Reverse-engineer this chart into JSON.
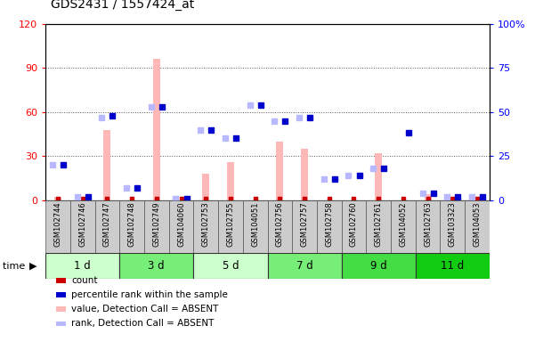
{
  "title": "GDS2431 / 1557424_at",
  "samples": [
    "GSM102744",
    "GSM102746",
    "GSM102747",
    "GSM102748",
    "GSM102749",
    "GSM104060",
    "GSM102753",
    "GSM102755",
    "GSM104051",
    "GSM102756",
    "GSM102757",
    "GSM102758",
    "GSM102760",
    "GSM102761",
    "GSM104052",
    "GSM102763",
    "GSM103323",
    "GSM104053"
  ],
  "groups": [
    {
      "label": "1 d",
      "indices": [
        0,
        1,
        2
      ],
      "color": "#ddffdd"
    },
    {
      "label": "3 d",
      "indices": [
        3,
        4,
        5
      ],
      "color": "#88ee88"
    },
    {
      "label": "5 d",
      "indices": [
        6,
        7,
        8
      ],
      "color": "#ddffdd"
    },
    {
      "label": "7 d",
      "indices": [
        9,
        10,
        11
      ],
      "color": "#88ee88"
    },
    {
      "label": "9 d",
      "indices": [
        12,
        13,
        14
      ],
      "color": "#44dd44"
    },
    {
      "label": "11 d",
      "indices": [
        15,
        16,
        17
      ],
      "color": "#22cc22"
    }
  ],
  "count_values": [
    1,
    1,
    1,
    1,
    1,
    1,
    1,
    1,
    1,
    1,
    1,
    1,
    1,
    1,
    1,
    1,
    1,
    1
  ],
  "percentile_rank_values": [
    20,
    2,
    48,
    7,
    53,
    1,
    40,
    35,
    54,
    45,
    47,
    12,
    14,
    18,
    38,
    4,
    2,
    2
  ],
  "value_absent": [
    2,
    0,
    48,
    0,
    96,
    0,
    18,
    26,
    0,
    40,
    35,
    0,
    0,
    32,
    0,
    4,
    1,
    0
  ],
  "rank_absent": [
    20,
    2,
    47,
    7,
    53,
    1,
    40,
    35,
    54,
    45,
    47,
    12,
    14,
    18,
    0,
    4,
    2,
    2
  ],
  "ylim_left": [
    0,
    120
  ],
  "ylim_right": [
    0,
    100
  ],
  "yticks_left": [
    0,
    30,
    60,
    90,
    120
  ],
  "yticks_right": [
    0,
    25,
    50,
    75,
    100
  ],
  "ytick_labels_left": [
    "0",
    "30",
    "60",
    "90",
    "120"
  ],
  "ytick_labels_right": [
    "0",
    "25",
    "50",
    "75",
    "100%"
  ],
  "color_count": "#cc0000",
  "color_rank": "#0000cc",
  "color_value_absent": "#ffb8b8",
  "color_rank_absent": "#b8b8ff",
  "bg_color": "#ffffff",
  "plot_bg": "#ffffff",
  "grid_color": "#555555",
  "legend_items": [
    {
      "label": "count",
      "color": "#cc0000"
    },
    {
      "label": "percentile rank within the sample",
      "color": "#0000cc"
    },
    {
      "label": "value, Detection Call = ABSENT",
      "color": "#ffb8b8"
    },
    {
      "label": "rank, Detection Call = ABSENT",
      "color": "#b8b8ff"
    }
  ]
}
